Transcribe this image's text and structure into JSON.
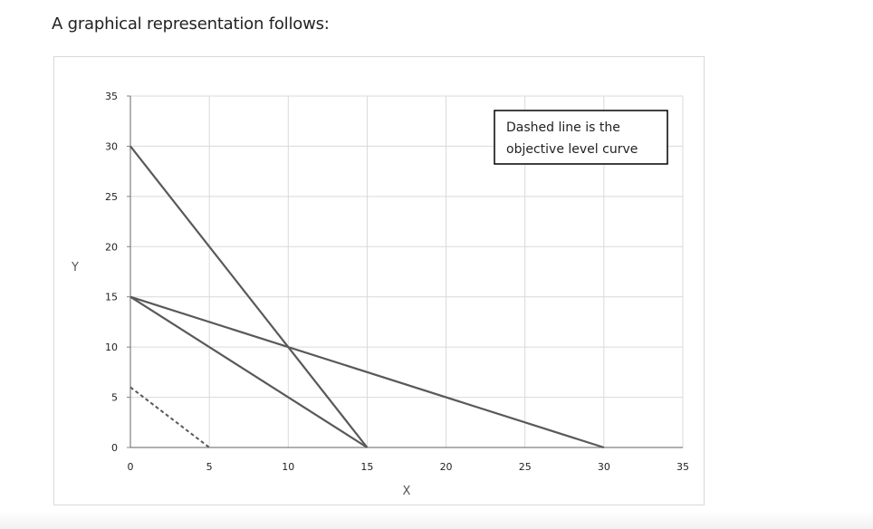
{
  "intro_text": "A graphical representation follows:",
  "chart_data": {
    "type": "line",
    "title": "",
    "xlabel": "X",
    "ylabel": "Y",
    "xlim": [
      0,
      35
    ],
    "ylim": [
      0,
      35
    ],
    "x_ticks": [
      0,
      5,
      10,
      15,
      20,
      25,
      30,
      35
    ],
    "y_ticks": [
      0,
      5,
      10,
      15,
      20,
      25,
      30,
      35
    ],
    "grid": true,
    "series": [
      {
        "x": [
          0,
          15
        ],
        "y": [
          30,
          0
        ],
        "style": "solid",
        "color": "#595959"
      },
      {
        "x": [
          0,
          30
        ],
        "y": [
          15,
          0
        ],
        "style": "solid",
        "color": "#595959"
      },
      {
        "x": [
          0,
          15
        ],
        "y": [
          15,
          0
        ],
        "style": "solid",
        "color": "#595959"
      },
      {
        "x": [
          0,
          5
        ],
        "y": [
          6,
          0
        ],
        "style": "dashed",
        "color": "#595959"
      }
    ],
    "annotation": {
      "lines": [
        "Dashed line is the",
        "objective level curve"
      ],
      "placement": "top-right"
    },
    "colors": {
      "line": "#595959",
      "grid": "#d9d9d9",
      "axis": "#808080"
    }
  }
}
